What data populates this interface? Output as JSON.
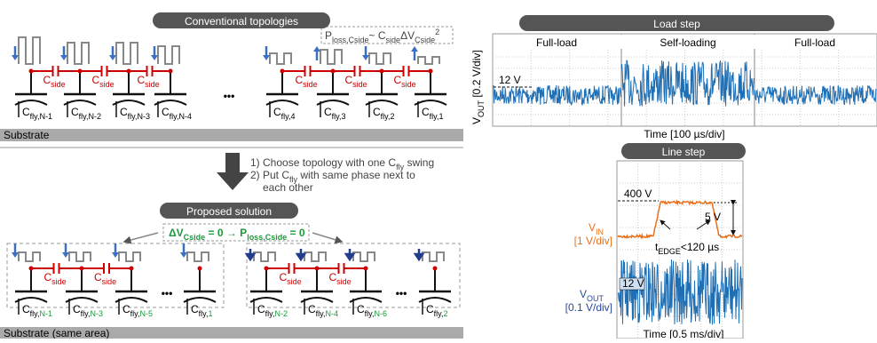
{
  "conventional": {
    "title": "Conventional topologies",
    "loss": [
      "P",
      "loss,Cside",
      "~ C",
      "side",
      "ΔV",
      "Cside",
      "2"
    ],
    "c_side": [
      "C",
      "side"
    ],
    "c_fly": "C",
    "fly_labels": [
      "fly,N-1",
      "fly,N-2",
      "fly,N-3",
      "fly,N-4",
      "fly,4",
      "fly,3",
      "fly,2",
      "fly,1"
    ],
    "ellipsis": "•••",
    "substrate": "Substrate"
  },
  "steps": [
    [
      "1) Choose topology with one C",
      "fly",
      " swing"
    ],
    [
      "2) Put C",
      "fly",
      " with same phase next to"
    ],
    [
      "each other"
    ]
  ],
  "proposed": {
    "title": "Proposed solution",
    "condition": [
      "ΔV",
      "Cside",
      " = 0 → P",
      "loss,Cside",
      " = 0"
    ],
    "fly_prefix": "fly,",
    "fly_indices": [
      "N-1",
      "N-3",
      "N-5",
      "1",
      "N-2",
      "N-4",
      "N-6",
      "2"
    ],
    "ellipsis": "•••",
    "substrate": "Substrate (same area)"
  },
  "load_step": {
    "title": "Load step",
    "phases": [
      "Full-load",
      "Self-loading",
      "Full-load"
    ],
    "level": "12 V",
    "y_label": [
      "V",
      "OUT",
      " [0.2 V/div]"
    ],
    "x_label": "Time [100 µs/div]"
  },
  "line_step": {
    "title": "Line step",
    "vin_level": "400 V",
    "vin_label": [
      "V",
      "IN",
      "[1 V/div]"
    ],
    "step": "5 V",
    "edge": [
      "t",
      "EDGE",
      "<120 µs"
    ],
    "vout_level": "12 V",
    "vout_label": [
      "V",
      "OUT",
      "[0.1 V/div]"
    ],
    "x_label": "Time [0.5 ms/div]"
  }
}
